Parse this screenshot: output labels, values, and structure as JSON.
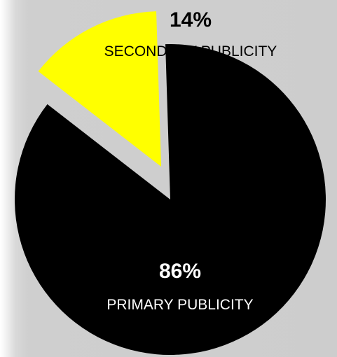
{
  "chart_data": {
    "type": "pie",
    "exploded": true,
    "slices": [
      {
        "label": "SECONDARY PUBLICITY",
        "value": 14,
        "value_label": "14%",
        "color": "#ffff00"
      },
      {
        "label": "PRIMARY PUBLICITY",
        "value": 86,
        "value_label": "86%",
        "color": "#000000"
      }
    ],
    "background_color": "#cdcdcd",
    "text_color_on_dark": "#ffffff",
    "text_color_on_light": "#000000",
    "legend": "none"
  }
}
